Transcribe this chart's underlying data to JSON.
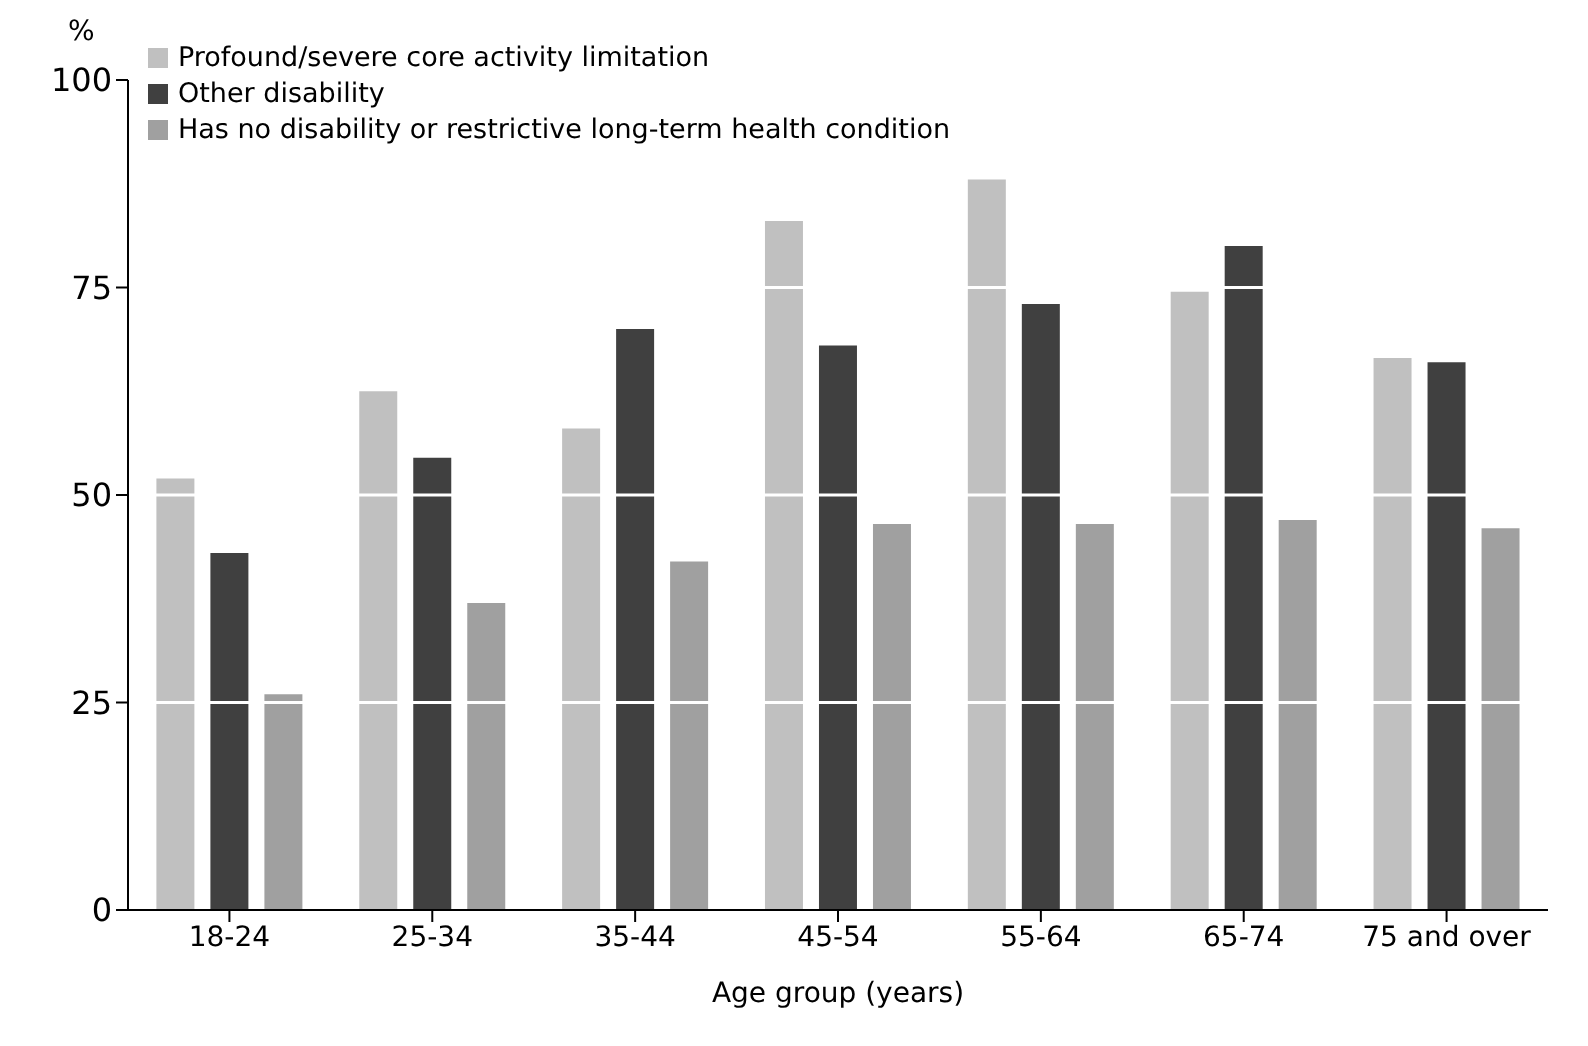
{
  "chart_data": {
    "type": "bar",
    "xlabel": "Age group (years)",
    "ylabel": "%",
    "categories": [
      "18-24",
      "25-34",
      "35-44",
      "45-54",
      "55-64",
      "65-74",
      "75 and over"
    ],
    "series": [
      {
        "name": "Profound/severe core activity limitation",
        "color": "#c0c0c0",
        "values": [
          52,
          62.5,
          58,
          83,
          88,
          74.5,
          66.5
        ]
      },
      {
        "name": "Other disability",
        "color": "#404040",
        "values": [
          43,
          54.5,
          70,
          68,
          73,
          80,
          66
        ]
      },
      {
        "name": "Has no disability or restrictive long-term health condition",
        "color": "#a0a0a0",
        "values": [
          26,
          37,
          42,
          46.5,
          46.5,
          47,
          46
        ]
      }
    ],
    "ylim": [
      0,
      100
    ],
    "yticks": [
      0,
      25,
      50,
      75,
      100
    ],
    "grid": "y",
    "legend": "top left"
  }
}
